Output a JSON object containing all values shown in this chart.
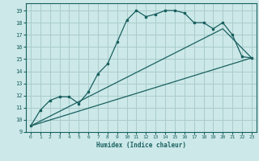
{
  "xlabel": "Humidex (Indice chaleur)",
  "bg_color": "#cce8e8",
  "grid_color": "#aacccc",
  "line_color": "#1a6060",
  "xlim": [
    -0.5,
    23.5
  ],
  "ylim": [
    9,
    19.6
  ],
  "xticks": [
    0,
    1,
    2,
    3,
    4,
    5,
    6,
    7,
    8,
    9,
    10,
    11,
    12,
    13,
    14,
    15,
    16,
    17,
    18,
    19,
    20,
    21,
    22,
    23
  ],
  "yticks": [
    9,
    10,
    11,
    12,
    13,
    14,
    15,
    16,
    17,
    18,
    19
  ],
  "line1": {
    "x": [
      0,
      1,
      2,
      3,
      4,
      5,
      6,
      7,
      8,
      9,
      10,
      11,
      12,
      13,
      14,
      15,
      16,
      17,
      18,
      19,
      20,
      21,
      22,
      23
    ],
    "y": [
      9.5,
      10.8,
      11.6,
      11.9,
      11.9,
      11.35,
      12.3,
      13.8,
      14.6,
      16.4,
      18.2,
      19.0,
      18.5,
      18.7,
      19.0,
      19.0,
      18.8,
      18.0,
      18.0,
      17.5,
      18.0,
      17.0,
      15.2,
      15.1
    ]
  },
  "line2": {
    "x": [
      0,
      23
    ],
    "y": [
      9.5,
      15.1
    ]
  },
  "line3": {
    "x": [
      0,
      20,
      23
    ],
    "y": [
      9.5,
      17.5,
      15.1
    ]
  }
}
